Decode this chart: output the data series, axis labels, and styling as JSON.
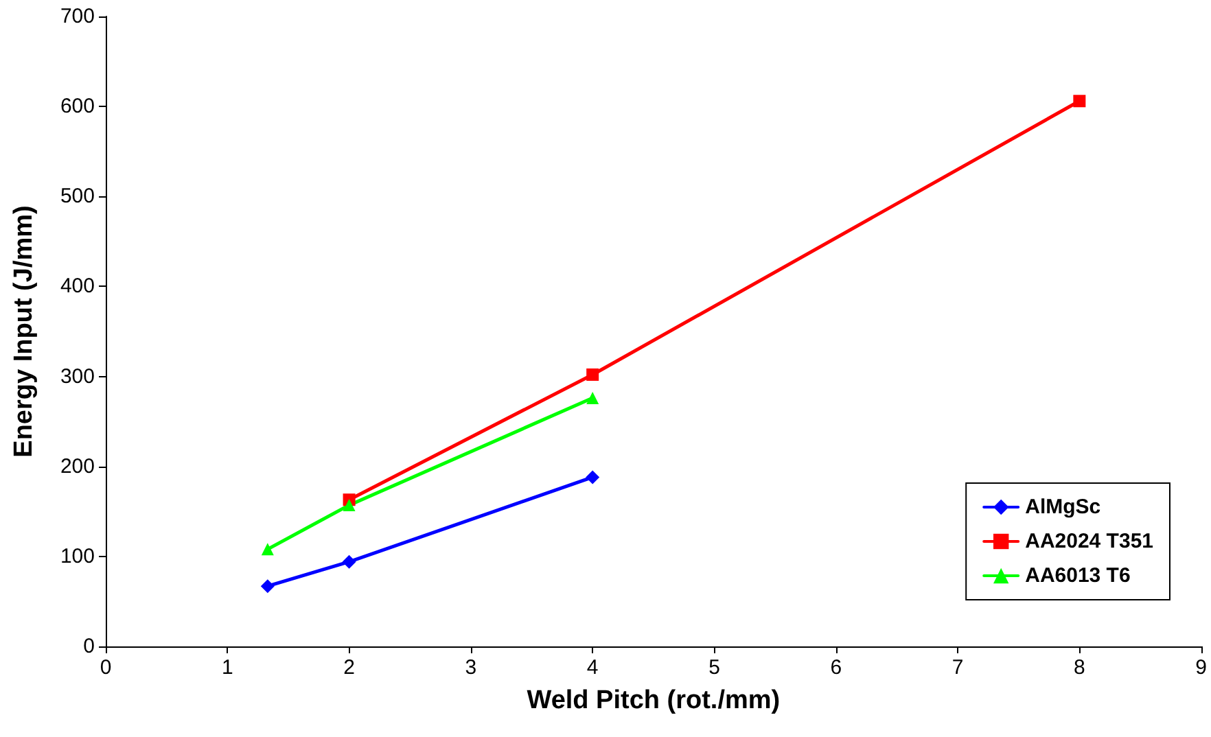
{
  "chart_data": {
    "type": "line",
    "xlabel": "Weld Pitch (rot./mm)",
    "ylabel": "Energy Input (J/mm)",
    "xlim": [
      0,
      9
    ],
    "xticks": [
      0,
      1,
      2,
      3,
      4,
      5,
      6,
      7,
      8,
      9
    ],
    "ylim": [
      0,
      700
    ],
    "yticks": [
      0,
      100,
      200,
      300,
      400,
      500,
      600,
      700
    ],
    "grid": false,
    "legend": "bottom right",
    "series": [
      {
        "name": "AlMgSc",
        "color": "#0000ff",
        "marker": "diamond",
        "x": [
          1.33,
          2,
          4
        ],
        "values": [
          67,
          94,
          188
        ]
      },
      {
        "name": "AA2024 T351",
        "color": "#ff0000",
        "marker": "square",
        "x": [
          2,
          4,
          8
        ],
        "values": [
          163,
          302,
          606
        ]
      },
      {
        "name": "AA6013 T6",
        "color": "#00ff00",
        "marker": "triangle",
        "x": [
          1.33,
          2,
          4
        ],
        "values": [
          108,
          157,
          276
        ]
      }
    ]
  }
}
